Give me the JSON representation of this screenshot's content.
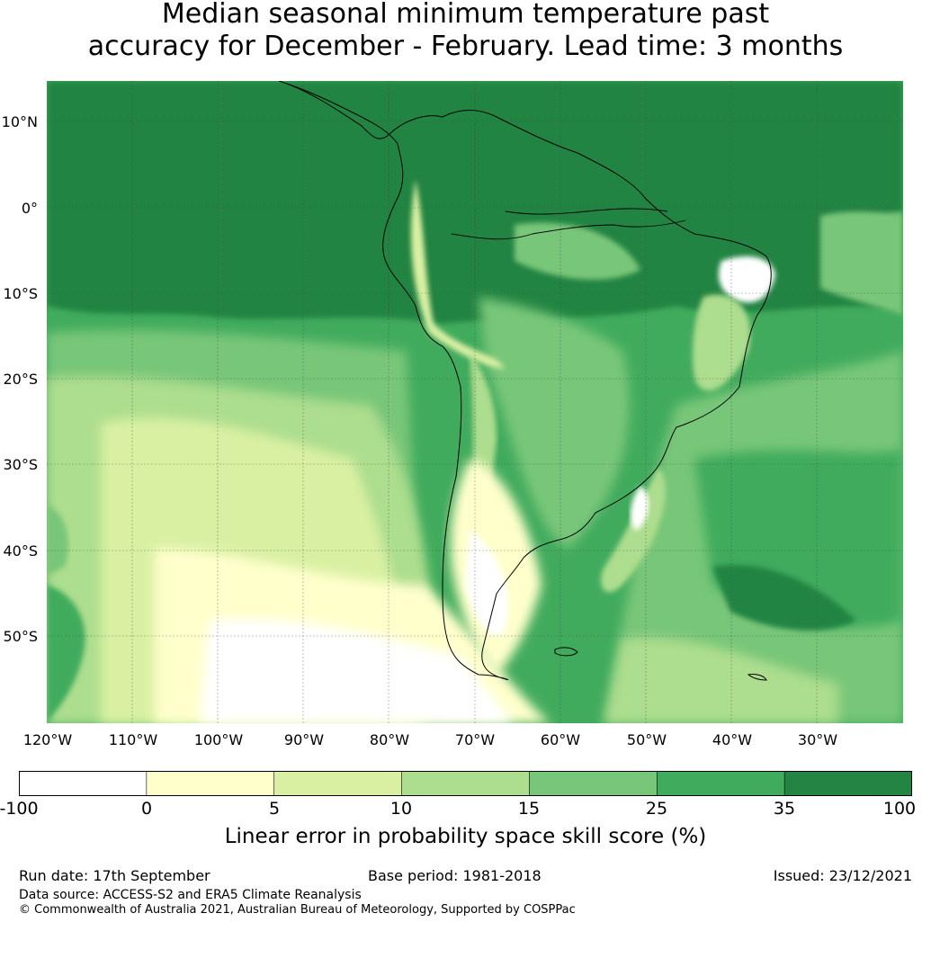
{
  "title": {
    "line1": "Median seasonal minimum temperature past",
    "line2": "accuracy for December - February. Lead time: 3 months"
  },
  "map": {
    "lat_labels": [
      "10°N",
      "0°",
      "10°S",
      "20°S",
      "30°S",
      "40°S",
      "50°S"
    ],
    "lon_labels": [
      "120°W",
      "110°W",
      "100°W",
      "90°W",
      "80°W",
      "70°W",
      "60°W",
      "50°W",
      "40°W",
      "30°W"
    ],
    "colors": {
      "ocean_dark": "#238443",
      "mid": "#41ab5d",
      "light": "#78c679",
      "lighter": "#addd8e",
      "pale": "#d9f0a3",
      "yellow": "#ffffcc",
      "white": "#ffffff"
    }
  },
  "colorbar": {
    "ticks": [
      "-100",
      "0",
      "5",
      "10",
      "15",
      "25",
      "35",
      "100"
    ],
    "colors": [
      "#ffffff",
      "#ffffcc",
      "#d9f0a3",
      "#addd8e",
      "#78c679",
      "#41ab5d",
      "#238443"
    ],
    "label": "Linear error in probability space skill score (%)"
  },
  "footer": {
    "run_date": "Run date: 17th September",
    "base_period": "Base period: 1981-2018",
    "issued": "Issued: 23/12/2021",
    "data_source": "Data source: ACCESS-S2 and ERA5 Climate Reanalysis",
    "copyright": "© Commonwealth of Australia 2021, Australian Bureau of Meteorology, Supported by COSPPac"
  }
}
